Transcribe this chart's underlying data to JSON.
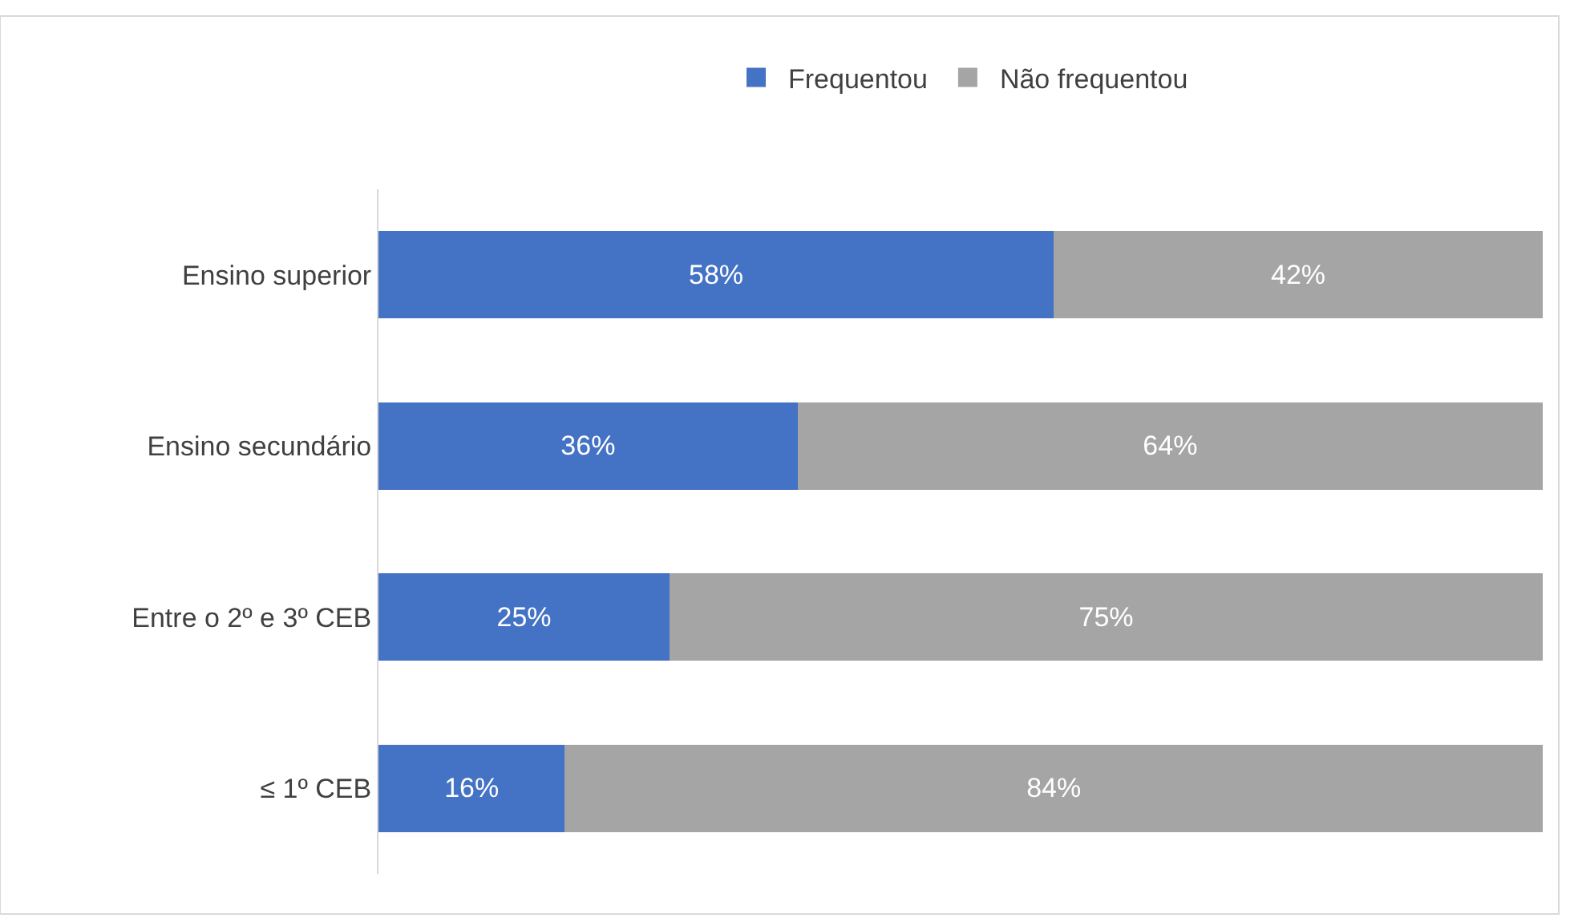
{
  "chart_data": {
    "type": "bar",
    "orientation": "horizontal",
    "stacked": true,
    "categories": [
      "Ensino superior",
      "Ensino secundário",
      "Entre o 2º e 3º CEB",
      "≤ 1º CEB"
    ],
    "series": [
      {
        "name": "Frequentou",
        "color": "#4472c4",
        "values": [
          58,
          36,
          25,
          16
        ],
        "value_labels": [
          "58%",
          "36%",
          "25%",
          "16%"
        ]
      },
      {
        "name": "Não frequentou",
        "color": "#a5a5a5",
        "values": [
          42,
          64,
          75,
          84
        ],
        "value_labels": [
          "42%",
          "64%",
          "75%",
          "84%"
        ]
      }
    ],
    "legend": "top"
  }
}
